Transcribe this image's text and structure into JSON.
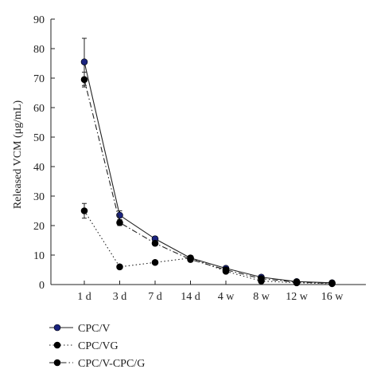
{
  "chart_data": {
    "type": "line",
    "title": "",
    "xlabel": "",
    "ylabel": "Released VCM (μg/mL)",
    "ylim": [
      0,
      90
    ],
    "yticks": [
      0,
      10,
      20,
      30,
      40,
      50,
      60,
      70,
      80,
      90
    ],
    "categories": [
      "1 d",
      "3 d",
      "7 d",
      "14 d",
      "4 w",
      "8 w",
      "12 w",
      "16 w"
    ],
    "grid": false,
    "legend_position": "bottom-left",
    "series": [
      {
        "name": "CPC/V",
        "line_style": "solid",
        "marker_color": "#1a237e",
        "values": [
          75.5,
          23.5,
          15.5,
          9.0,
          5.5,
          2.5,
          1.0,
          0.6
        ],
        "error": [
          8.0,
          1.5,
          0.8,
          0.8,
          0.5,
          0.5,
          0.3,
          0.2
        ]
      },
      {
        "name": "CPC/VG",
        "line_style": "dotted",
        "marker_color": "#000000",
        "values": [
          25.0,
          6.0,
          7.5,
          9.0,
          4.5,
          1.2,
          0.6,
          0.3
        ],
        "error": [
          2.5,
          0.5,
          0.5,
          0.5,
          0.4,
          0.3,
          0.2,
          0.1
        ]
      },
      {
        "name": "CPC/V-CPC/G",
        "line_style": "dashdot",
        "marker_color": "#000000",
        "values": [
          69.5,
          21.0,
          14.0,
          8.5,
          5.0,
          2.0,
          0.8,
          0.4
        ],
        "error": [
          2.5,
          1.0,
          0.8,
          0.6,
          0.4,
          0.3,
          0.2,
          0.1
        ]
      }
    ]
  }
}
